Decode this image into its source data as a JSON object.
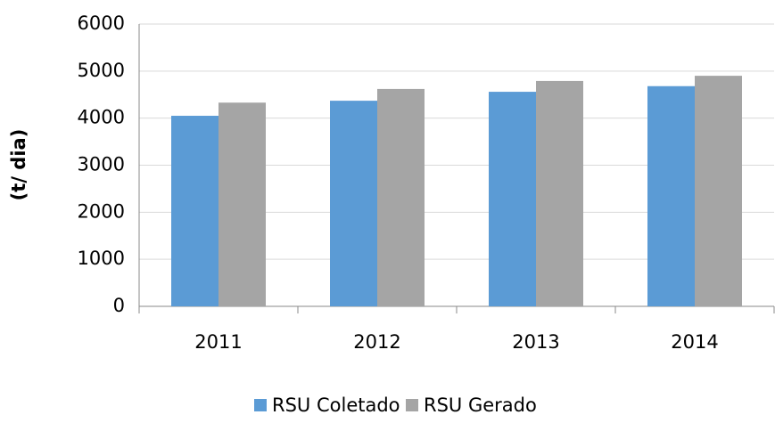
{
  "chart_data": {
    "type": "bar",
    "y_label": "(t/ dia)",
    "categories": [
      "2011",
      "2012",
      "2013",
      "2014"
    ],
    "series": [
      {
        "name": "RSU Coletado",
        "color": "#5b9bd5",
        "values": [
          4050,
          4370,
          4560,
          4680
        ]
      },
      {
        "name": "RSU Gerado",
        "color": "#a5a5a5",
        "values": [
          4330,
          4620,
          4790,
          4900
        ]
      }
    ],
    "ylim": [
      0,
      6000
    ],
    "yticks": [
      0,
      1000,
      2000,
      3000,
      4000,
      5000,
      6000
    ],
    "grid": true,
    "legend": "bottom"
  }
}
